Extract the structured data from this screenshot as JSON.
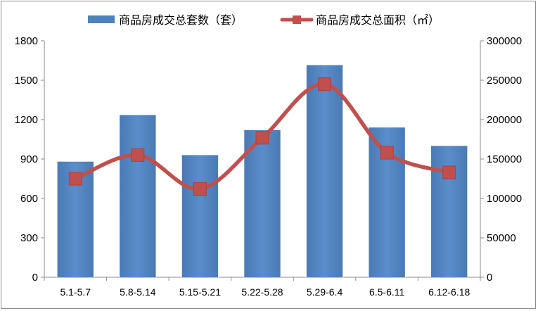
{
  "chart_data": {
    "type": "bar",
    "categories": [
      "5.1-5.7",
      "5.8-5.14",
      "5.15-5.21",
      "5.22-5.28",
      "5.29-6.4",
      "6.5-6.11",
      "6.12-6.18"
    ],
    "series": [
      {
        "name": "商品房成交总套数（套）",
        "type": "bar",
        "axis": "left",
        "color": "#4f81bd",
        "values": [
          880,
          1235,
          930,
          1120,
          1615,
          1140,
          1000
        ]
      },
      {
        "name": "商品房成交总面积（㎡）",
        "type": "line",
        "smooth": true,
        "marker": "square",
        "axis": "right",
        "color": "#c0504d",
        "values": [
          125000,
          155000,
          112000,
          177000,
          245000,
          158000,
          133000
        ]
      }
    ],
    "y_left": {
      "lim": [
        0,
        1800
      ],
      "ticks": [
        "0",
        "300",
        "600",
        "900",
        "1200",
        "1500",
        "1800"
      ]
    },
    "y_right": {
      "lim": [
        0,
        300000
      ],
      "ticks": [
        "0",
        "50000",
        "100000",
        "150000",
        "200000",
        "250000",
        "300000"
      ]
    },
    "title": "",
    "xlabel": "",
    "ylabel": "",
    "grid": false,
    "legend": "top-center"
  }
}
